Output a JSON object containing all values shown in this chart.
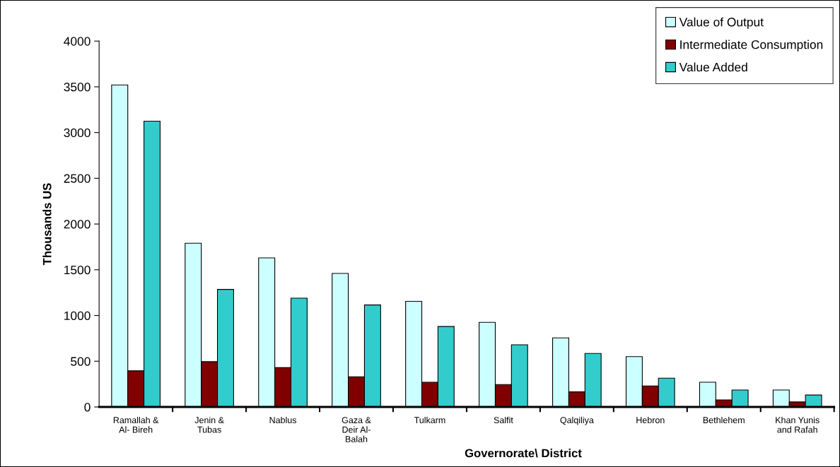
{
  "chart_data": {
    "type": "bar",
    "xlabel": "Governorate\\ District",
    "ylabel": "Thousands US",
    "categories": [
      "Ramallah &\nAl- Bireh",
      "Jenin &\nTubas",
      "Nablus",
      "Gaza &\nDeir Al-\nBalah",
      "Tulkarm",
      "Salfit",
      "Qalqiliya",
      "Hebron",
      "Bethlehem",
      "Khan Yunis\nand Rafah"
    ],
    "series": [
      {
        "name": "Value of Output",
        "color": "#ccffff",
        "values": [
          3520,
          1790,
          1630,
          1460,
          1155,
          925,
          755,
          550,
          270,
          185
        ]
      },
      {
        "name": "Intermediate Consumption",
        "color": "#800000",
        "values": [
          395,
          495,
          430,
          330,
          270,
          245,
          165,
          230,
          77,
          55
        ]
      },
      {
        "name": "Value Added",
        "color": "#33cccc",
        "values": [
          3125,
          1285,
          1190,
          1115,
          880,
          680,
          585,
          315,
          185,
          130
        ]
      }
    ],
    "ylim": [
      0,
      4000
    ],
    "yticks": [
      0,
      500,
      1000,
      1500,
      2000,
      2500,
      3000,
      3500,
      4000
    ],
    "grid": false,
    "legend": "top right"
  }
}
